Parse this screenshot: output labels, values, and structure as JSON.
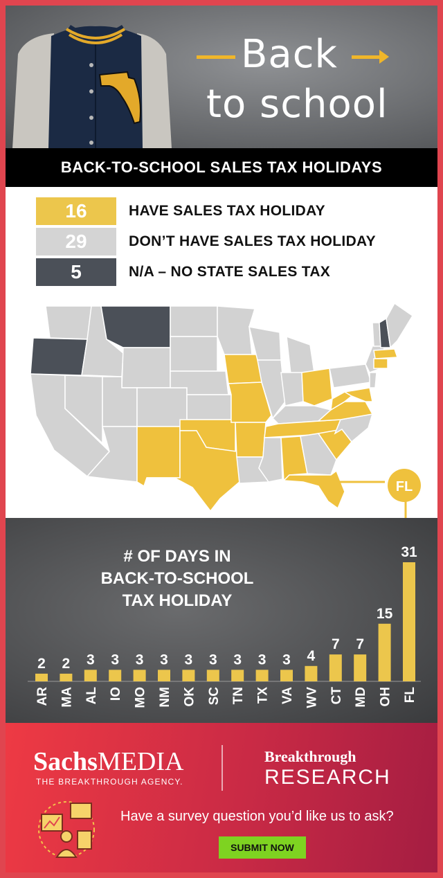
{
  "hero": {
    "line1": "Back",
    "line2": "to school"
  },
  "title": "BACK-TO-SCHOOL SALES TAX HOLIDAYS",
  "legend": [
    {
      "count": "16",
      "label": "HAVE SALES TAX HOLIDAY",
      "color": "#ecc64c"
    },
    {
      "count": "29",
      "label": "DON’T HAVE SALES TAX HOLIDAY",
      "color": "#d4d4d4"
    },
    {
      "count": "5",
      "label": "N/A – NO STATE SALES TAX",
      "color": "#4b5058"
    }
  ],
  "map": {
    "callout_label": "FL",
    "holiday_color": "#efc13d",
    "none_color": "#d2d2d2",
    "na_color": "#4b5058"
  },
  "chart_data": {
    "type": "bar",
    "title": "# OF DAYS IN BACK-TO-SCHOOL TAX HOLIDAY",
    "title_lines": [
      "# OF DAYS IN",
      "BACK-TO-SCHOOL",
      "TAX HOLIDAY"
    ],
    "categories": [
      "AR",
      "MA",
      "AL",
      "IO",
      "MO",
      "NM",
      "OK",
      "SC",
      "TN",
      "TX",
      "VA",
      "WV",
      "CT",
      "MD",
      "OH",
      "FL"
    ],
    "values": [
      2,
      2,
      3,
      3,
      3,
      3,
      3,
      3,
      3,
      3,
      3,
      4,
      7,
      7,
      15,
      31
    ],
    "ylim": [
      0,
      31
    ],
    "bar_color": "#ecc64c",
    "grid": false
  },
  "footer": {
    "brand_bold": "Sachs",
    "brand_rest": "MEDIA",
    "tagline": "THE BREAKTHROUGH AGENCY.",
    "partner_top": "Breakthrough",
    "partner_bottom": "RESEARCH",
    "question": "Have a survey question you’d like us to ask?",
    "button_label": "SUBMIT NOW"
  }
}
